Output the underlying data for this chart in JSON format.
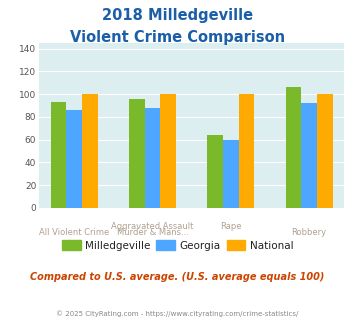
{
  "title_line1": "2018 Milledgeville",
  "title_line2": "Violent Crime Comparison",
  "top_labels": [
    "",
    "Aggravated Assault",
    "Rape",
    ""
  ],
  "bot_labels": [
    "All Violent Crime",
    "Murder & Mans...",
    "",
    "Robbery"
  ],
  "milledgeville": [
    93,
    96,
    64,
    106
  ],
  "georgia": [
    86,
    88,
    60,
    92
  ],
  "national": [
    100,
    100,
    100,
    100
  ],
  "colors": {
    "milledgeville": "#7aba2a",
    "georgia": "#4da6ff",
    "national": "#ffaa00"
  },
  "ylim": [
    0,
    145
  ],
  "yticks": [
    0,
    20,
    40,
    60,
    80,
    100,
    120,
    140
  ],
  "background_color": "#ddeef0",
  "title_color": "#1a5fa8",
  "axis_label_color": "#b0a090",
  "legend_label_color": "#222222",
  "footer_text": "Compared to U.S. average. (U.S. average equals 100)",
  "footer_color": "#cc4400",
  "credit_text": "© 2025 CityRating.com - https://www.cityrating.com/crime-statistics/",
  "credit_color": "#888888"
}
